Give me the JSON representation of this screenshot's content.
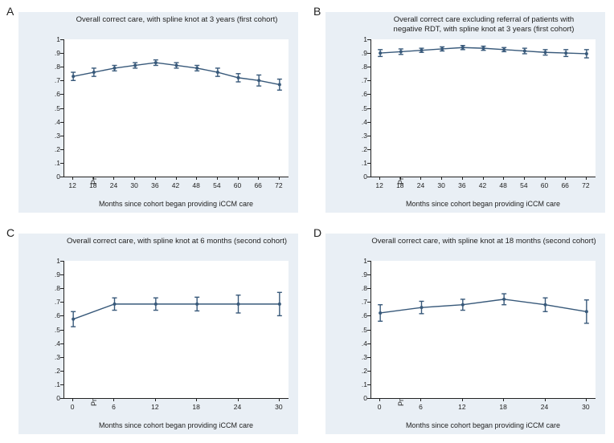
{
  "global": {
    "panel_bg": "#e9eff5",
    "plot_bg": "#ffffff",
    "axis_color": "#222222",
    "series_color": "#38597a",
    "marker_color": "#38597a",
    "text_color": "#222222",
    "title_fontsize": 9.5,
    "tick_fontsize": 8.5,
    "label_fontsize": 9,
    "ylabel": "Predicted probability of receiving correct care",
    "xlabel": "Months since cohort began providing iCCM care",
    "ylim": [
      0,
      1
    ],
    "ytick_step": 0.1,
    "line_width": 1.4,
    "marker_size": 4,
    "cap_width": 6
  },
  "panels": {
    "A": {
      "letter": "A",
      "title": "Overall correct care, with spline knot at 3 years (first cohort)",
      "x": [
        12,
        18,
        24,
        30,
        36,
        42,
        48,
        54,
        60,
        66,
        72
      ],
      "xlim": [
        12,
        72
      ],
      "y": [
        0.73,
        0.76,
        0.79,
        0.81,
        0.83,
        0.81,
        0.79,
        0.76,
        0.72,
        0.7,
        0.67
      ],
      "lo": [
        0.7,
        0.73,
        0.77,
        0.79,
        0.81,
        0.79,
        0.77,
        0.73,
        0.69,
        0.66,
        0.63
      ],
      "hi": [
        0.76,
        0.79,
        0.81,
        0.83,
        0.85,
        0.83,
        0.81,
        0.79,
        0.75,
        0.74,
        0.71
      ]
    },
    "B": {
      "letter": "B",
      "title": "Overall correct care excluding referral of patients with\nnegative RDT, with spline knot at 3 years (first cohort)",
      "x": [
        12,
        18,
        24,
        30,
        36,
        42,
        48,
        54,
        60,
        66,
        72
      ],
      "xlim": [
        12,
        72
      ],
      "y": [
        0.9,
        0.91,
        0.92,
        0.93,
        0.94,
        0.935,
        0.925,
        0.915,
        0.905,
        0.9,
        0.895
      ],
      "lo": [
        0.875,
        0.89,
        0.905,
        0.915,
        0.925,
        0.92,
        0.91,
        0.895,
        0.885,
        0.875,
        0.865
      ],
      "hi": [
        0.925,
        0.93,
        0.935,
        0.945,
        0.955,
        0.95,
        0.94,
        0.935,
        0.925,
        0.925,
        0.925
      ]
    },
    "C": {
      "letter": "C",
      "title": "Overall correct care, with spline knot at 6 months (second cohort)",
      "x": [
        0,
        6,
        12,
        18,
        24,
        30
      ],
      "xlim": [
        0,
        30
      ],
      "y": [
        0.575,
        0.685,
        0.685,
        0.685,
        0.685,
        0.685
      ],
      "lo": [
        0.52,
        0.64,
        0.64,
        0.635,
        0.62,
        0.6
      ],
      "hi": [
        0.63,
        0.73,
        0.73,
        0.735,
        0.75,
        0.77
      ]
    },
    "D": {
      "letter": "D",
      "title": "Overall correct care, with spline knot at 18 months (second cohort)",
      "x": [
        0,
        6,
        12,
        18,
        24,
        30
      ],
      "xlim": [
        0,
        30
      ],
      "y": [
        0.62,
        0.66,
        0.68,
        0.72,
        0.68,
        0.63
      ],
      "lo": [
        0.56,
        0.615,
        0.64,
        0.68,
        0.63,
        0.545
      ],
      "hi": [
        0.68,
        0.705,
        0.72,
        0.76,
        0.73,
        0.715
      ]
    }
  },
  "order": [
    "A",
    "B",
    "C",
    "D"
  ]
}
